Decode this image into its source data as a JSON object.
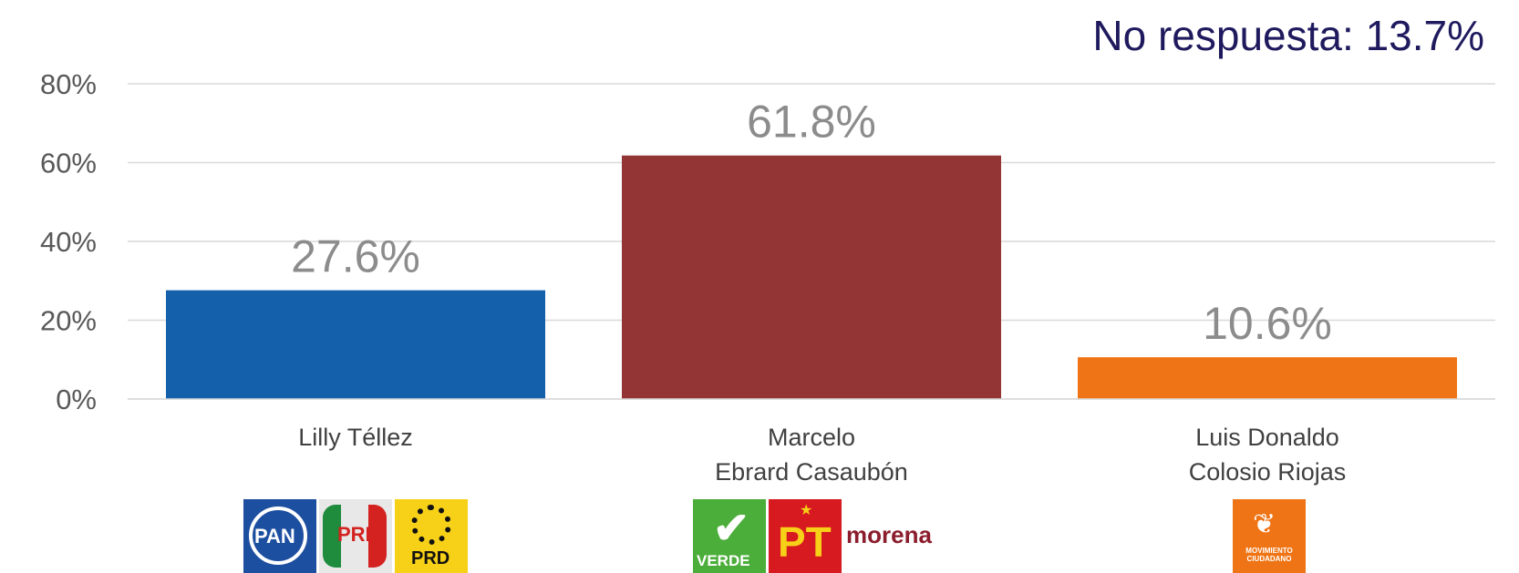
{
  "note": {
    "text": "No respuesta: 13.7%"
  },
  "chart_data": {
    "type": "bar",
    "categories": [
      "Lilly Téllez",
      "Marcelo Ebrard Casaubón",
      "Luis Donaldo Colosio Riojas"
    ],
    "category_lines": [
      [
        "Lilly Téllez"
      ],
      [
        "Marcelo",
        "Ebrard Casaubón"
      ],
      [
        "Luis Donaldo",
        "Colosio Riojas"
      ]
    ],
    "values": [
      27.6,
      61.8,
      10.6
    ],
    "data_labels": [
      "27.6%",
      "61.8%",
      "10.6%"
    ],
    "colors": [
      "#1560aa",
      "#933535",
      "#ef7415"
    ],
    "ylim": [
      0,
      80
    ],
    "yticks": [
      0,
      20,
      40,
      60,
      80
    ],
    "ytick_labels": [
      "0%",
      "20%",
      "40%",
      "60%",
      "80%"
    ],
    "grid": true,
    "title": "",
    "xlabel": "",
    "ylabel": ""
  },
  "logos": [
    {
      "name": "pan-pri-prd-logos",
      "items": [
        {
          "icon": "pan-logo-icon",
          "text": "PAN",
          "bg": "#1d4fa0",
          "fg": "#ffffff"
        },
        {
          "icon": "pri-logo-icon",
          "text": "PRI",
          "bg": "#e8e8e8",
          "fg": "#d3221f"
        },
        {
          "icon": "prd-logo-icon",
          "text": "PRD",
          "bg": "#f7d117",
          "fg": "#111111"
        }
      ]
    },
    {
      "name": "verde-pt-morena-logos",
      "items": [
        {
          "icon": "verde-logo-icon",
          "text": "VERDE",
          "bg": "#4cae3a",
          "fg": "#ffffff"
        },
        {
          "icon": "pt-logo-icon",
          "text": "PT",
          "bg": "#d71920",
          "fg": "#f7d117"
        },
        {
          "icon": "morena-logo-icon",
          "text": "morena",
          "bg": "#ffffff",
          "fg": "#8b1d2c"
        }
      ]
    },
    {
      "name": "movimiento-ciudadano-logo",
      "items": [
        {
          "icon": "movimiento-ciudadano-logo-icon",
          "text": "MOVIMIENTO CIUDADANO",
          "bg": "#ef7415",
          "fg": "#ffffff"
        }
      ]
    }
  ]
}
